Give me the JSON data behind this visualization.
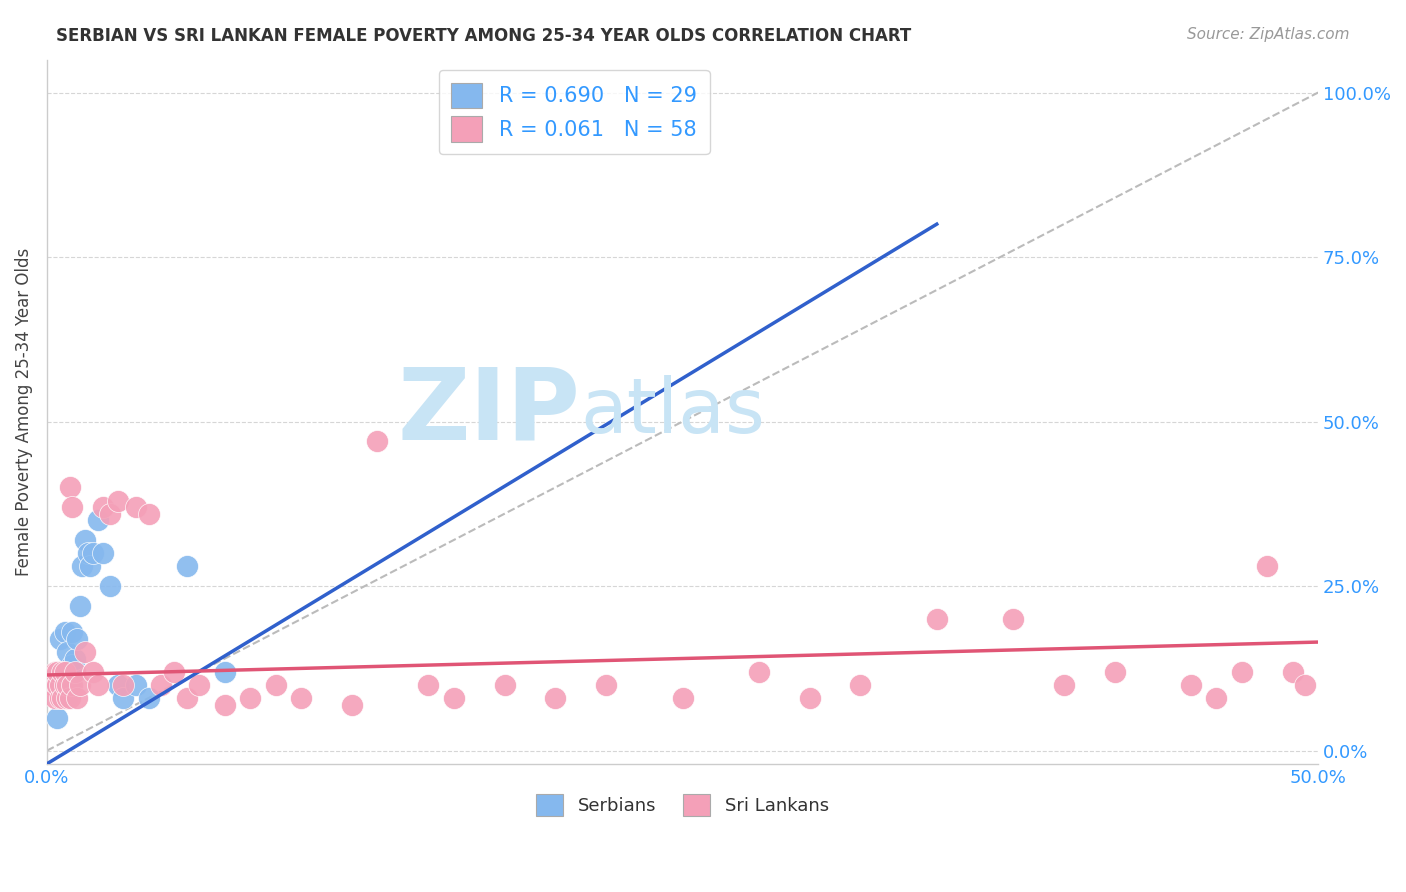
{
  "title": "SERBIAN VS SRI LANKAN FEMALE POVERTY AMONG 25-34 YEAR OLDS CORRELATION CHART",
  "source": "Source: ZipAtlas.com",
  "ylabel": "Female Poverty Among 25-34 Year Olds",
  "xlim": [
    0.0,
    0.5
  ],
  "ylim": [
    -0.02,
    1.05
  ],
  "xticks": [
    0.0,
    0.1,
    0.2,
    0.3,
    0.4,
    0.5
  ],
  "xticklabels": [
    "0.0%",
    "",
    "",
    "",
    "",
    "50.0%"
  ],
  "ytick_positions": [
    0.0,
    0.25,
    0.5,
    0.75,
    1.0
  ],
  "yticklabels_right": [
    "0.0%",
    "25.0%",
    "50.0%",
    "75.0%",
    "100.0%"
  ],
  "serbian_R": 0.69,
  "serbian_N": 29,
  "srilanka_R": 0.061,
  "srilanka_N": 58,
  "serbian_color": "#85B8EE",
  "srilanka_color": "#F4A0B8",
  "serbian_line_color": "#3060CC",
  "srilanka_line_color": "#E05575",
  "diagonal_color": "#BBBBBB",
  "watermark_zip": "ZIP",
  "watermark_atlas": "atlas",
  "watermark_color": "#C8E4F5",
  "grid_color": "#CCCCCC",
  "background_color": "#FFFFFF",
  "serbian_x": [
    0.003,
    0.004,
    0.005,
    0.005,
    0.006,
    0.007,
    0.007,
    0.008,
    0.008,
    0.009,
    0.01,
    0.01,
    0.011,
    0.012,
    0.013,
    0.014,
    0.015,
    0.016,
    0.017,
    0.018,
    0.02,
    0.022,
    0.025,
    0.028,
    0.03,
    0.035,
    0.04,
    0.055,
    0.07
  ],
  "serbian_y": [
    0.1,
    0.05,
    0.12,
    0.17,
    0.1,
    0.12,
    0.18,
    0.08,
    0.15,
    0.1,
    0.13,
    0.18,
    0.14,
    0.17,
    0.22,
    0.28,
    0.32,
    0.3,
    0.28,
    0.3,
    0.35,
    0.3,
    0.25,
    0.1,
    0.08,
    0.1,
    0.08,
    0.28,
    0.12
  ],
  "srilanka_x": [
    0.002,
    0.003,
    0.003,
    0.004,
    0.004,
    0.005,
    0.005,
    0.006,
    0.006,
    0.007,
    0.007,
    0.008,
    0.008,
    0.009,
    0.009,
    0.01,
    0.01,
    0.011,
    0.012,
    0.013,
    0.015,
    0.018,
    0.02,
    0.022,
    0.025,
    0.028,
    0.03,
    0.035,
    0.04,
    0.045,
    0.05,
    0.055,
    0.06,
    0.07,
    0.08,
    0.09,
    0.1,
    0.12,
    0.13,
    0.15,
    0.16,
    0.18,
    0.2,
    0.22,
    0.25,
    0.28,
    0.3,
    0.32,
    0.35,
    0.38,
    0.4,
    0.42,
    0.45,
    0.46,
    0.47,
    0.48,
    0.49,
    0.495
  ],
  "srilanka_y": [
    0.1,
    0.12,
    0.08,
    0.1,
    0.12,
    0.08,
    0.1,
    0.12,
    0.08,
    0.1,
    0.12,
    0.08,
    0.1,
    0.08,
    0.4,
    0.37,
    0.1,
    0.12,
    0.08,
    0.1,
    0.15,
    0.12,
    0.1,
    0.37,
    0.36,
    0.38,
    0.1,
    0.37,
    0.36,
    0.1,
    0.12,
    0.08,
    0.1,
    0.07,
    0.08,
    0.1,
    0.08,
    0.07,
    0.47,
    0.1,
    0.08,
    0.1,
    0.08,
    0.1,
    0.08,
    0.12,
    0.08,
    0.1,
    0.2,
    0.2,
    0.1,
    0.12,
    0.1,
    0.08,
    0.12,
    0.28,
    0.12,
    0.1
  ],
  "serbian_line_x": [
    0.0,
    0.35
  ],
  "serbian_line_y": [
    -0.02,
    0.8
  ],
  "srilanka_line_x": [
    0.0,
    0.5
  ],
  "srilanka_line_y": [
    0.115,
    0.165
  ]
}
